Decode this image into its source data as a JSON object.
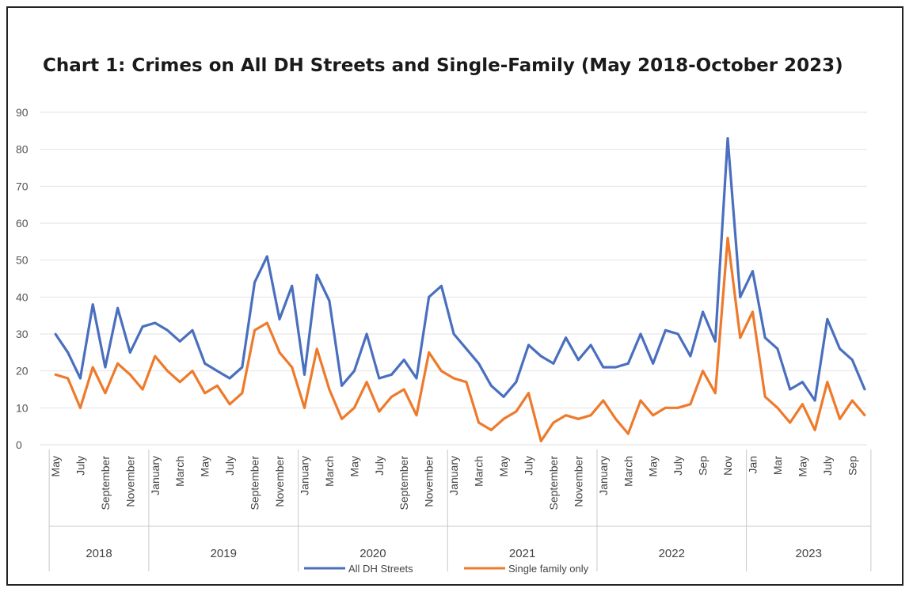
{
  "colors": {
    "all_dh": "#4a6fbe",
    "single_family": "#ee7a2b"
  },
  "chart_data": {
    "type": "line",
    "title": "Chart 1: Crimes on All DH Streets and Single-Family  (May 2018-October 2023)",
    "xlabel": "",
    "ylabel": "",
    "ylim": [
      0,
      90
    ],
    "yticks": [
      0,
      10,
      20,
      30,
      40,
      50,
      60,
      70,
      80,
      90
    ],
    "grid": true,
    "legend_position": "bottom",
    "x_labels": [
      "May",
      "",
      "July",
      "",
      "September",
      "",
      "November",
      "",
      "January",
      "",
      "March",
      "",
      "May",
      "",
      "July",
      "",
      "September",
      "",
      "November",
      "",
      "January",
      "",
      "March",
      "",
      "May",
      "",
      "July",
      "",
      "September",
      "",
      "November",
      "",
      "January",
      "",
      "March",
      "",
      "May",
      "",
      "July",
      "",
      "September",
      "",
      "November",
      "",
      "January",
      "",
      "March",
      "",
      "May",
      "",
      "July",
      "",
      "Sep",
      "",
      "Nov",
      "",
      "Jan",
      "",
      "Mar",
      "",
      "May",
      "",
      "July",
      "",
      "Sep",
      ""
    ],
    "year_groups": [
      {
        "label": "2018",
        "start": 0,
        "count": 8
      },
      {
        "label": "2019",
        "start": 8,
        "count": 12
      },
      {
        "label": "2020",
        "start": 20,
        "count": 12
      },
      {
        "label": "2021",
        "start": 32,
        "count": 12
      },
      {
        "label": "2022",
        "start": 44,
        "count": 12
      },
      {
        "label": "2023",
        "start": 56,
        "count": 10
      }
    ],
    "series": [
      {
        "name": "All DH Streets",
        "values": [
          30,
          25,
          18,
          38,
          21,
          37,
          25,
          32,
          33,
          31,
          28,
          31,
          22,
          20,
          18,
          21,
          44,
          51,
          34,
          43,
          19,
          46,
          39,
          16,
          20,
          30,
          18,
          19,
          23,
          18,
          40,
          43,
          30,
          26,
          22,
          16,
          13,
          17,
          27,
          24,
          22,
          29,
          23,
          27,
          21,
          21,
          22,
          30,
          22,
          31,
          30,
          24,
          36,
          28,
          83,
          40,
          47,
          29,
          26,
          15,
          17,
          12,
          34,
          26,
          23,
          15
        ]
      },
      {
        "name": "Single family only",
        "values": [
          19,
          18,
          10,
          21,
          14,
          22,
          19,
          15,
          24,
          20,
          17,
          20,
          14,
          16,
          11,
          14,
          31,
          33,
          25,
          21,
          10,
          26,
          15,
          7,
          10,
          17,
          9,
          13,
          15,
          8,
          25,
          20,
          18,
          17,
          6,
          4,
          7,
          9,
          14,
          1,
          6,
          8,
          7,
          8,
          12,
          7,
          3,
          12,
          8,
          10,
          10,
          11,
          20,
          14,
          56,
          29,
          36,
          13,
          10,
          6,
          11,
          4,
          17,
          7,
          12,
          8
        ]
      }
    ]
  }
}
